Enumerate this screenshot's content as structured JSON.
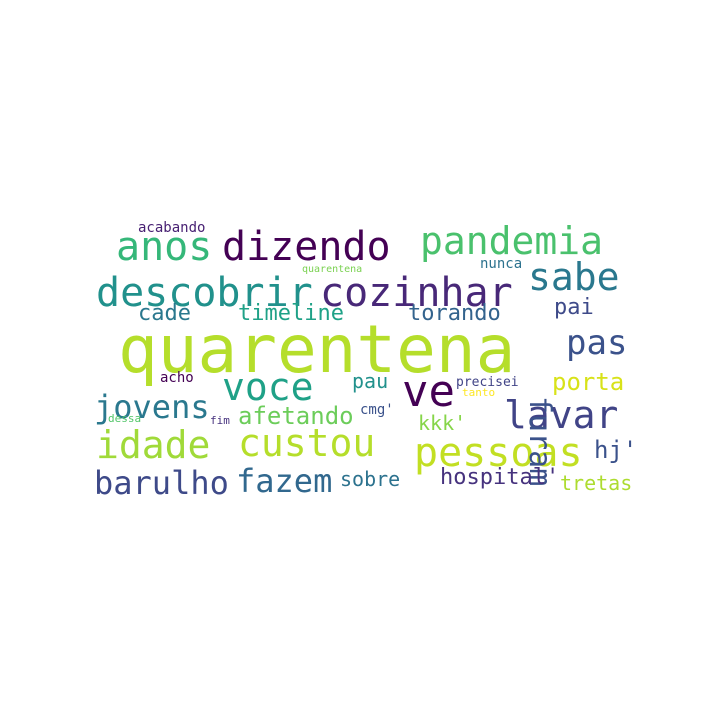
{
  "wordcloud": {
    "words": [
      {
        "text": "quarentena",
        "color": "#b5de2b"
      },
      {
        "text": "descobrir",
        "color": "#21918c"
      },
      {
        "text": "cozinhar",
        "color": "#482878"
      },
      {
        "text": "dizendo",
        "color": "#440154"
      },
      {
        "text": "anos",
        "color": "#35b779"
      },
      {
        "text": "pandemia",
        "color": "#4ac16d"
      },
      {
        "text": "sabe",
        "color": "#2a788e"
      },
      {
        "text": "pessoas",
        "color": "#c2df23"
      },
      {
        "text": "custou",
        "color": "#b5de2b"
      },
      {
        "text": "idade",
        "color": "#a0da39"
      },
      {
        "text": "voce",
        "color": "#1fa187"
      },
      {
        "text": "ve",
        "color": "#440154"
      },
      {
        "text": "lavar",
        "color": "#414487"
      },
      {
        "text": "pas",
        "color": "#3b528b"
      },
      {
        "text": "furam",
        "color": "#3b528b"
      },
      {
        "text": "jovens",
        "color": "#2a788e"
      },
      {
        "text": "fazem",
        "color": "#31688e"
      },
      {
        "text": "barulho",
        "color": "#3e4a89"
      },
      {
        "text": "porta",
        "color": "#d8e219"
      },
      {
        "text": "afetando",
        "color": "#6ccd5a"
      },
      {
        "text": "timeline",
        "color": "#1fa187"
      },
      {
        "text": "torando",
        "color": "#33638d"
      },
      {
        "text": "cade",
        "color": "#2a788e"
      },
      {
        "text": "pau",
        "color": "#21918c"
      },
      {
        "text": "kkk'",
        "color": "#86d549"
      },
      {
        "text": "hospital'",
        "color": "#46327e"
      },
      {
        "text": "tretas",
        "color": "#addc30"
      },
      {
        "text": "sobre",
        "color": "#2c728e"
      },
      {
        "text": "hj'",
        "color": "#3b528b"
      },
      {
        "text": "pai",
        "color": "#3e4a89"
      },
      {
        "text": "acabando",
        "color": "#482173"
      },
      {
        "text": "nunca",
        "color": "#2c728e"
      },
      {
        "text": "quarentena",
        "color": "#7ad151"
      },
      {
        "text": "acho",
        "color": "#440154"
      },
      {
        "text": "precisei",
        "color": "#414487"
      },
      {
        "text": "tanto",
        "color": "#fde725"
      },
      {
        "text": "cmg'",
        "color": "#3b528b"
      },
      {
        "text": "dessa",
        "color": "#52c569"
      },
      {
        "text": "fim",
        "color": "#46327e"
      }
    ]
  }
}
